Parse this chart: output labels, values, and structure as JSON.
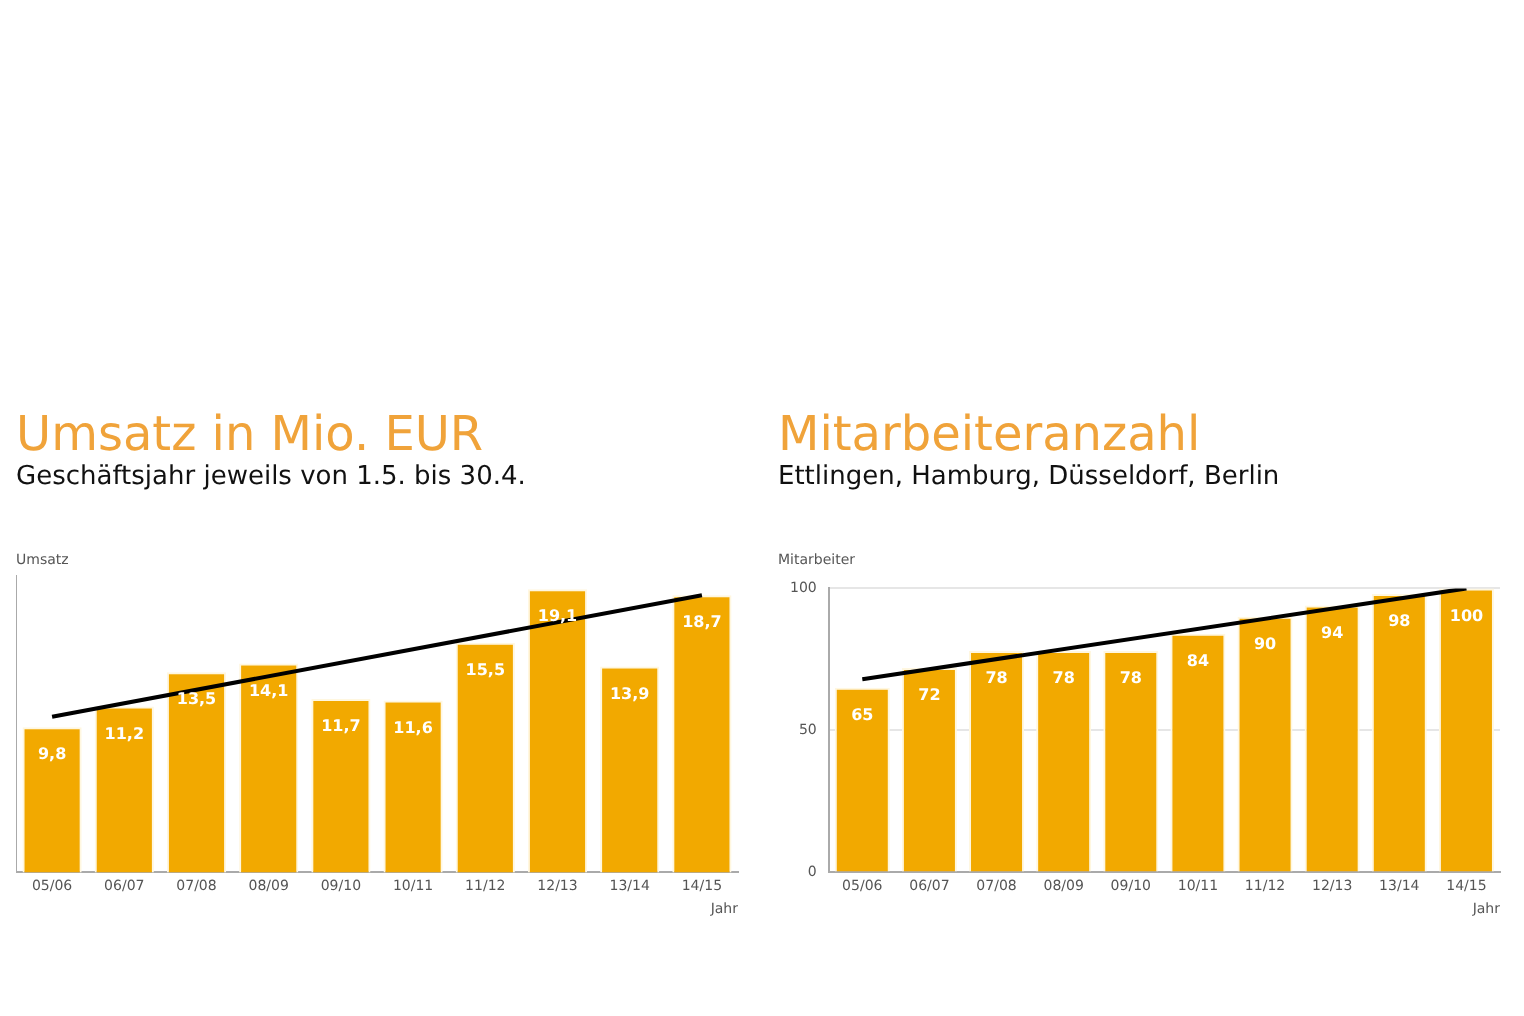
{
  "chart_data": [
    {
      "type": "bar",
      "title": "Umsatz in Mio. EUR",
      "subtitle": "Geschäftsjahr jeweils von 1.5. bis 30.4.",
      "ylabel": "Umsatz",
      "xlabel": "Jahr",
      "categories": [
        "05/06",
        "06/07",
        "07/08",
        "08/09",
        "09/10",
        "10/11",
        "11/12",
        "12/13",
        "13/14",
        "14/15"
      ],
      "series": [
        {
          "color": "#f2a900",
          "values": [
            9.8,
            11.2,
            13.5,
            14.1,
            11.7,
            11.6,
            15.5,
            19.1,
            13.9,
            18.7
          ],
          "value_labels": [
            "9,8",
            "11,2",
            "13,5",
            "14,1",
            "11,7",
            "11,6",
            "15,5",
            "19,1",
            "13,9",
            "18,7"
          ]
        },
        {
          "type": "line",
          "color": "#000000",
          "marker": "none",
          "values": [
            10.5,
            null,
            null,
            null,
            null,
            null,
            null,
            null,
            null,
            18.7
          ]
        }
      ],
      "tick_labels": "x"
    },
    {
      "type": "bar",
      "title": "Mitarbeiteranzahl",
      "subtitle": "Ettlingen, Hamburg, Düsseldorf, Berlin",
      "ylabel": "Mitarbeiter",
      "xlabel": "Jahr",
      "categories": [
        "05/06",
        "06/07",
        "07/08",
        "08/09",
        "09/10",
        "10/11",
        "11/12",
        "12/13",
        "13/14",
        "14/15"
      ],
      "series": [
        {
          "color": "#f2a900",
          "values": [
            65,
            72,
            78,
            78,
            78,
            84,
            90,
            94,
            98,
            100
          ],
          "value_labels": [
            "65",
            "72",
            "78",
            "78",
            "78",
            "84",
            "90",
            "94",
            "98",
            "100"
          ]
        },
        {
          "type": "line",
          "color": "#000000",
          "marker": "none",
          "values": [
            68,
            null,
            null,
            null,
            null,
            null,
            null,
            null,
            null,
            100
          ]
        }
      ],
      "ylim": [
        0,
        100
      ],
      "yticks": [
        0,
        50,
        100
      ],
      "grid": "y"
    }
  ]
}
